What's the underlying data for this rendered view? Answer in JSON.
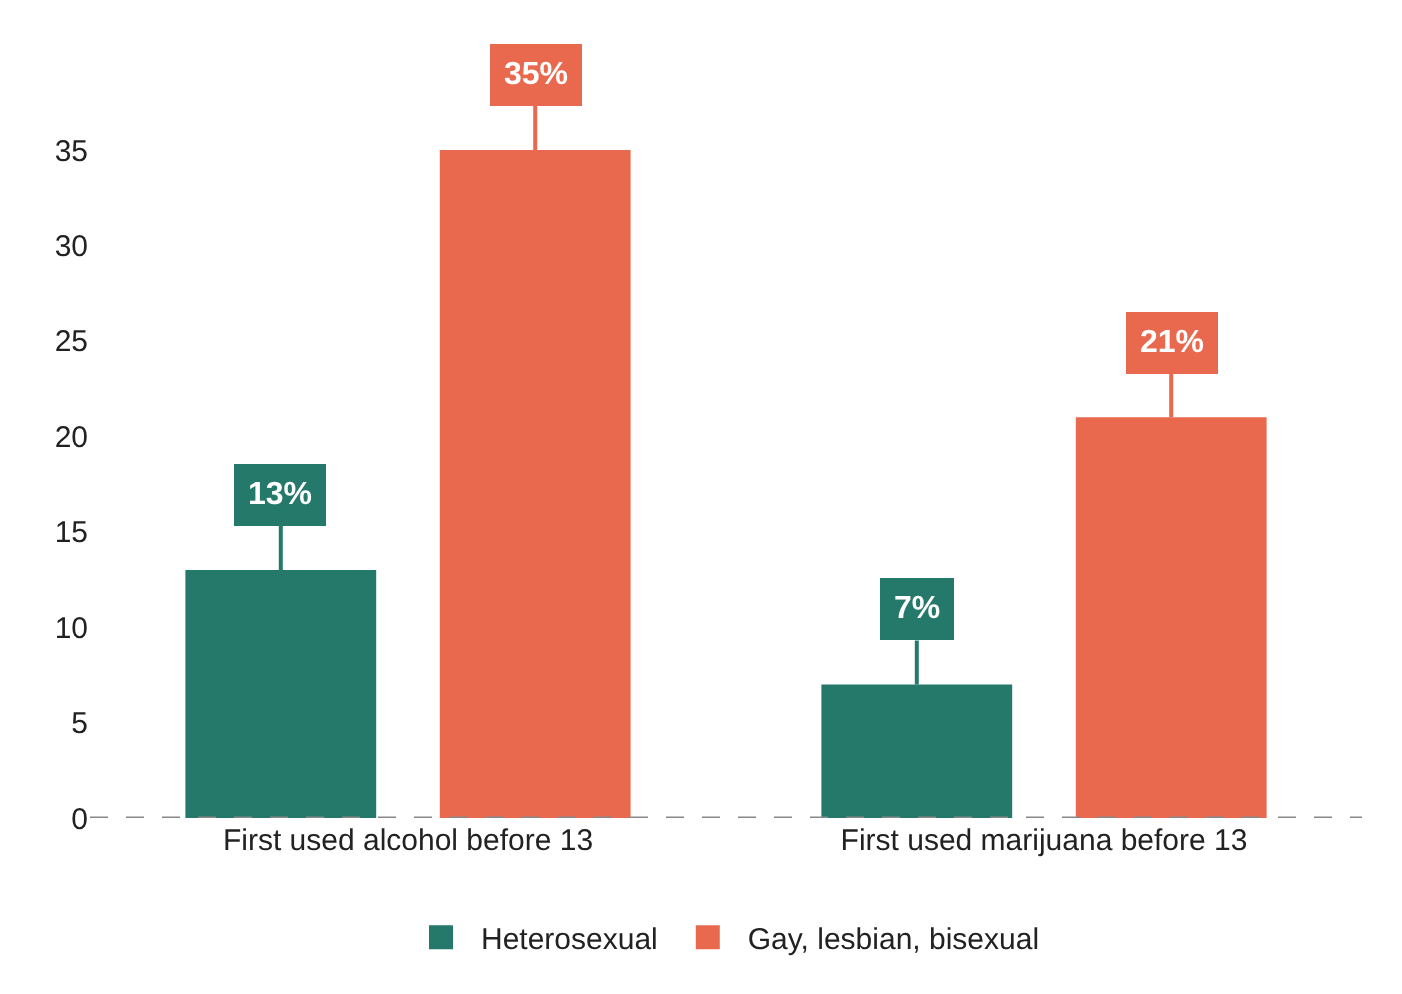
{
  "chart_data": {
    "type": "bar",
    "categories": [
      "First used alcohol before 13",
      "First used marijuana before 13"
    ],
    "series": [
      {
        "name": "Heterosexual",
        "color": "#25796b",
        "values": [
          13,
          7
        ],
        "value_labels": [
          "13%",
          "7%"
        ]
      },
      {
        "name": "Gay, lesbian, bisexual",
        "color": "#e8694e",
        "values": [
          35,
          21
        ],
        "value_labels": [
          "35%",
          "21%"
        ]
      }
    ],
    "ylim": [
      0,
      35
    ],
    "yticks": [
      0,
      5,
      10,
      15,
      20,
      25,
      30,
      35
    ],
    "legend": "bottom",
    "ref_lines": [
      {
        "axis": "y",
        "value": 0,
        "color": "#888888",
        "line_style": "dashed"
      }
    ]
  }
}
